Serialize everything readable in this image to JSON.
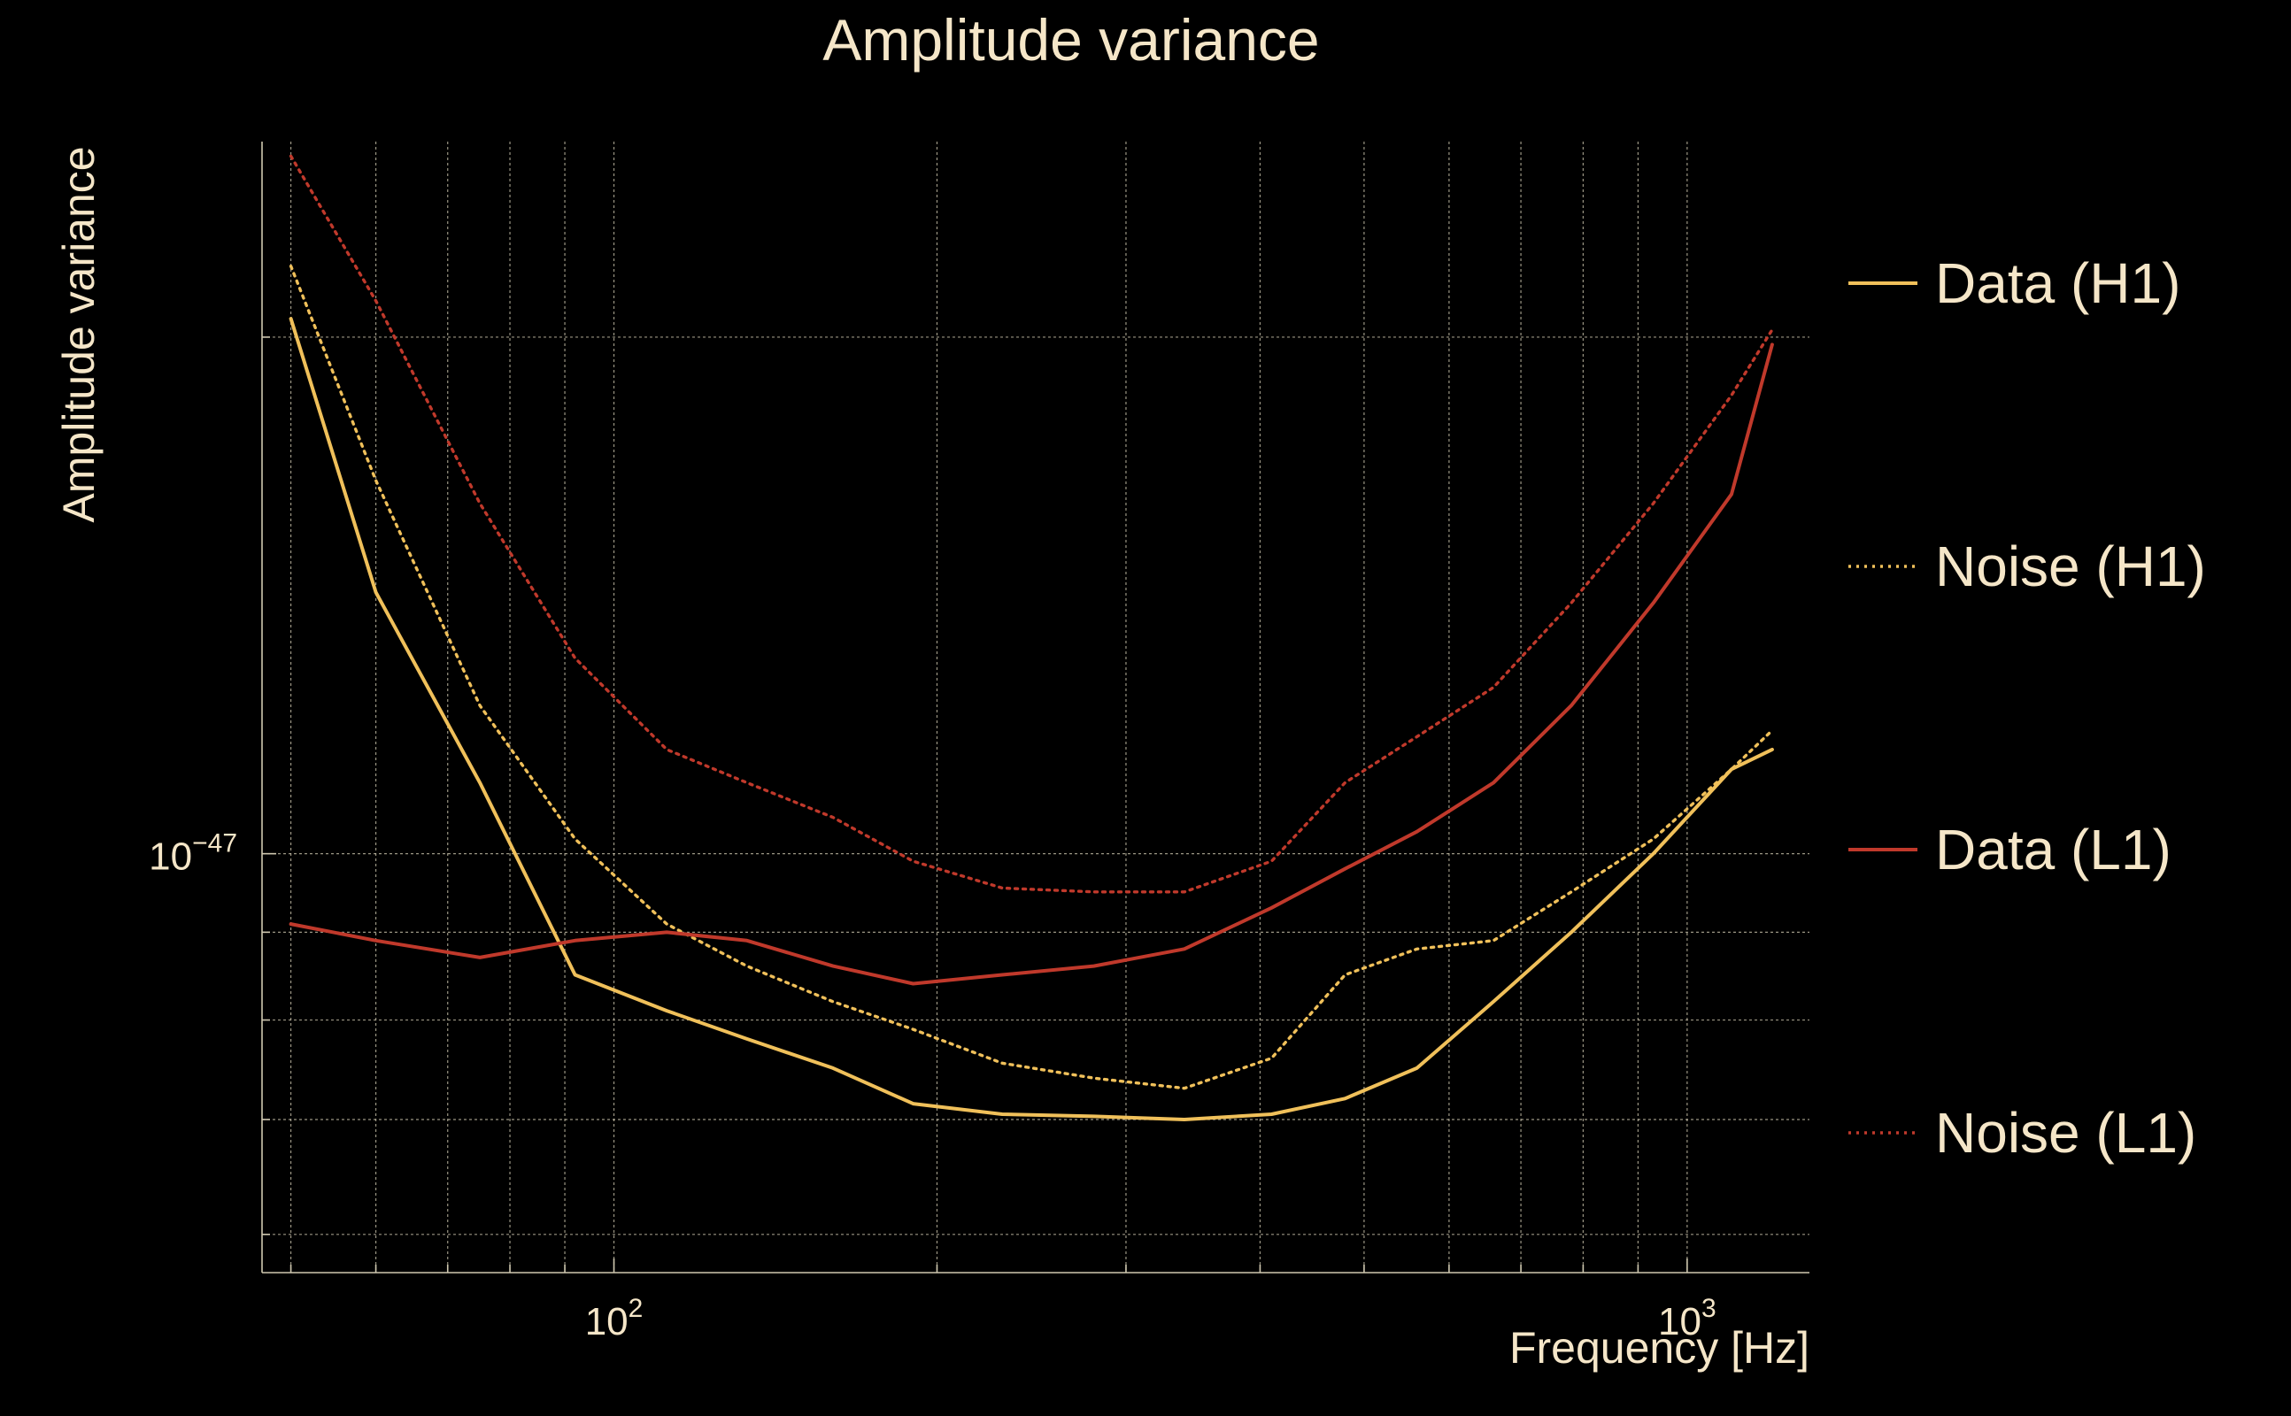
{
  "chart_data": {
    "type": "line",
    "title": "Amplitude variance",
    "xlabel": "Frequency [Hz]",
    "ylabel": "Amplitude variance",
    "x_scale": "log",
    "y_scale": "log",
    "xlim": [
      47,
      1300
    ],
    "ylim": [
      5.7e-48,
      2.6e-47
    ],
    "x_ticks": [
      {
        "value": 100,
        "base": "10",
        "exp": "2"
      },
      {
        "value": 1000,
        "base": "10",
        "exp": "3"
      }
    ],
    "y_ticks": [
      {
        "value": 1e-47,
        "base": "10",
        "exp": "−47"
      }
    ],
    "grid": true,
    "legend_position": "right",
    "colors": {
      "h1": "#f0c05a",
      "l1": "#c0392b",
      "text": "#f5e6c8",
      "grid": "#cfc8b0"
    },
    "series": [
      {
        "name": "Data (H1)",
        "color": "#f0c05a",
        "dash": "solid",
        "x": [
          50,
          60,
          75,
          92,
          112,
          133,
          160,
          190,
          230,
          280,
          340,
          410,
          480,
          560,
          660,
          780,
          930,
          1100,
          1200
        ],
        "y": [
          2.05e-47,
          1.42e-47,
          1.1e-47,
          8.5e-48,
          8.1e-48,
          7.8e-48,
          7.5e-48,
          7.15e-48,
          7.05e-48,
          7.03e-48,
          7e-48,
          7.05e-48,
          7.2e-48,
          7.5e-48,
          8.2e-48,
          9e-48,
          1e-47,
          1.12e-47,
          1.15e-47
        ]
      },
      {
        "name": "Noise (H1)",
        "color": "#f0c05a",
        "dash": "dotted",
        "x": [
          50,
          60,
          75,
          92,
          112,
          133,
          160,
          190,
          230,
          280,
          340,
          410,
          480,
          560,
          660,
          780,
          930,
          1100,
          1200
        ],
        "y": [
          2.2e-47,
          1.65e-47,
          1.22e-47,
          1.02e-47,
          9.1e-48,
          8.6e-48,
          8.2e-48,
          7.9e-48,
          7.55e-48,
          7.4e-48,
          7.3e-48,
          7.6e-48,
          8.5e-48,
          8.8e-48,
          8.9e-48,
          9.5e-48,
          1.02e-47,
          1.12e-47,
          1.18e-47
        ]
      },
      {
        "name": "Data (L1)",
        "color": "#c0392b",
        "dash": "solid",
        "x": [
          50,
          60,
          75,
          92,
          112,
          133,
          160,
          190,
          230,
          280,
          340,
          410,
          480,
          560,
          660,
          780,
          930,
          1100,
          1200
        ],
        "y": [
          9.1e-48,
          8.9e-48,
          8.7e-48,
          8.9e-48,
          9e-48,
          8.9e-48,
          8.6e-48,
          8.4e-48,
          8.5e-48,
          8.6e-48,
          8.8e-48,
          9.3e-48,
          9.8e-48,
          1.03e-47,
          1.1e-47,
          1.22e-47,
          1.4e-47,
          1.62e-47,
          1.98e-47
        ]
      },
      {
        "name": "Noise (L1)",
        "color": "#c0392b",
        "dash": "dotted",
        "x": [
          50,
          60,
          75,
          92,
          112,
          133,
          160,
          190,
          230,
          280,
          340,
          410,
          480,
          560,
          660,
          780,
          930,
          1100,
          1200
        ],
        "y": [
          2.55e-47,
          2.1e-47,
          1.6e-47,
          1.3e-47,
          1.15e-47,
          1.1e-47,
          1.05e-47,
          9.9e-48,
          9.55e-48,
          9.5e-48,
          9.5e-48,
          9.9e-48,
          1.1e-47,
          1.17e-47,
          1.25e-47,
          1.4e-47,
          1.6e-47,
          1.85e-47,
          2.02e-47
        ]
      }
    ]
  }
}
